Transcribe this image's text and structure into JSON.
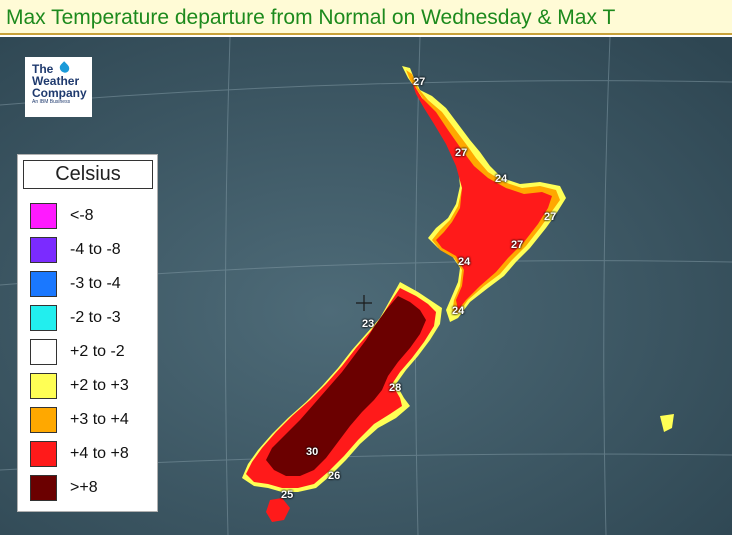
{
  "title": "Max Temperature departure from Normal on Wednesday & Max T",
  "logo": {
    "line1": "The",
    "line2": "Weather",
    "line3": "Company",
    "tagline": "An IBM Business"
  },
  "legend": {
    "title": "Celsius",
    "items": [
      {
        "label": "<-8",
        "color": "#ff1aff"
      },
      {
        "label": "-4 to -8",
        "color": "#7b2bff"
      },
      {
        "label": "-3 to -4",
        "color": "#1a78ff"
      },
      {
        "label": "-2 to -3",
        "color": "#22eeee"
      },
      {
        "label": "+2 to -2",
        "color": "#ffffff"
      },
      {
        "label": "+2 to +3",
        "color": "#ffff55"
      },
      {
        "label": "+3 to +4",
        "color": "#ffa800"
      },
      {
        "label": "+4 to +8",
        "color": "#ff1a1a"
      },
      {
        "label": ">+8",
        "color": "#6b0000"
      }
    ]
  },
  "temperature_labels": [
    "27",
    "27",
    "24",
    "27",
    "27",
    "24",
    "24",
    "23",
    "28",
    "30",
    "26",
    "25"
  ],
  "colors": {
    "ocean": "#3b5866",
    "grid": "#7f98a3",
    "title_text": "#1d8a1d"
  }
}
